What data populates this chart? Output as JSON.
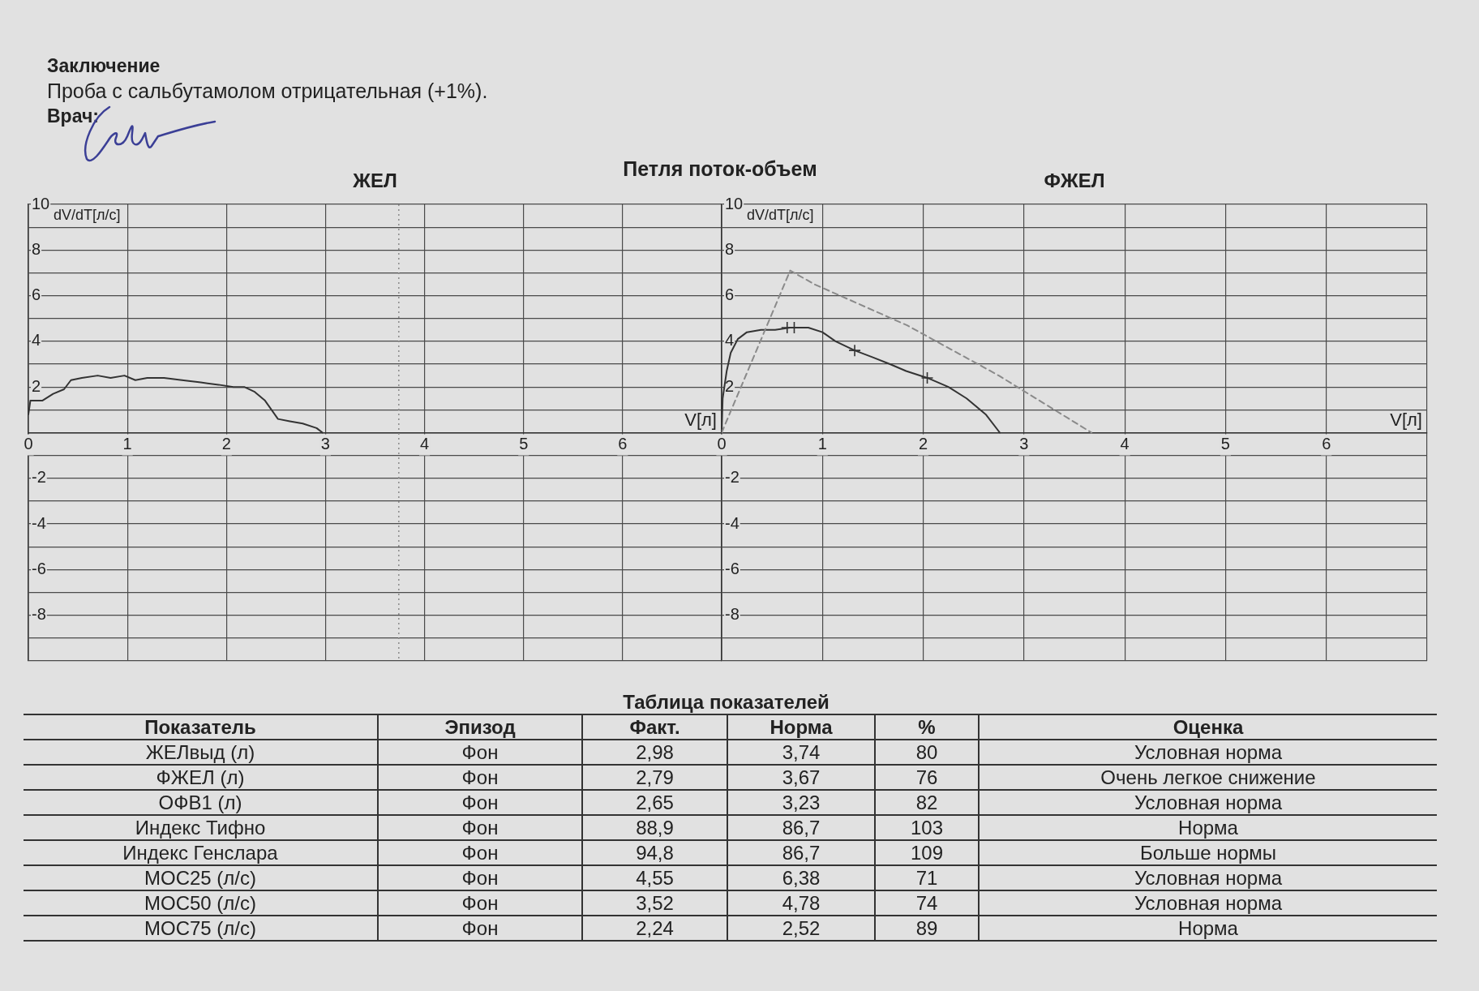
{
  "chart_data": [
    {
      "type": "other",
      "title": "Петля поток-объем",
      "annotations": [
        "Заключение",
        "Проба с сальбутамолом отрицательная (+1%).",
        "Врач:"
      ]
    },
    {
      "type": "line",
      "title": "ЖЕЛ",
      "xlabel": "V[л]",
      "ylabel": "dV/dT[л/с]",
      "xlim": [
        0,
        7
      ],
      "ylim": [
        -10,
        10
      ],
      "xticks": [
        0,
        1,
        2,
        3,
        4,
        5,
        6,
        {
          "value": 7,
          "label": null
        }
      ],
      "yticks": [
        {
          "value": -10,
          "label": null
        },
        {
          "value": -9,
          "label": null
        },
        -8,
        {
          "value": -7,
          "label": null
        },
        -6,
        {
          "value": -5,
          "label": null
        },
        -4,
        {
          "value": -3,
          "label": null
        },
        -2,
        {
          "value": -1,
          "label": null
        },
        {
          "value": 0,
          "label": null
        },
        {
          "value": 1,
          "label": null
        },
        2,
        {
          "value": 3,
          "label": null
        },
        4,
        {
          "value": 5,
          "label": null
        },
        6,
        {
          "value": 7,
          "label": null
        },
        8,
        {
          "value": 9,
          "label": null
        },
        10
      ],
      "grid": true,
      "marker": "none",
      "series": [
        {
          "color": "#333333",
          "line_style": "solid",
          "x": [
            0,
            0.02,
            0.14,
            0.25,
            0.36,
            0.43,
            0.54,
            0.7,
            0.83,
            0.97,
            1.08,
            1.2,
            1.37,
            1.55,
            1.74,
            1.92,
            2.07,
            2.18,
            2.28,
            2.39,
            2.52,
            2.64,
            2.77,
            2.91,
            2.97
          ],
          "values": [
            0.8,
            1.4,
            1.4,
            1.7,
            1.9,
            2.3,
            2.4,
            2.5,
            2.4,
            2.5,
            2.3,
            2.4,
            2.4,
            2.3,
            2.2,
            2.1,
            2.0,
            2.0,
            1.8,
            1.4,
            0.6,
            0.5,
            0.4,
            0.2,
            0
          ]
        }
      ],
      "ref_lines": [
        {
          "axis": "x",
          "value": 3.74,
          "line_style": "dotted",
          "color": "#8a8a8a"
        }
      ]
    },
    {
      "type": "line",
      "title": "ФЖЕЛ",
      "xlabel": "V[л]",
      "ylabel": "dV/dT[л/с]",
      "xlim": [
        0,
        7
      ],
      "ylim": [
        -10,
        10
      ],
      "xticks": [
        0,
        1,
        2,
        3,
        4,
        5,
        6,
        {
          "value": 7,
          "label": null
        }
      ],
      "yticks": [
        {
          "value": -10,
          "label": null
        },
        {
          "value": -9,
          "label": null
        },
        -8,
        {
          "value": -7,
          "label": null
        },
        -6,
        {
          "value": -5,
          "label": null
        },
        -4,
        {
          "value": -3,
          "label": null
        },
        -2,
        {
          "value": -1,
          "label": null
        },
        {
          "value": 0,
          "label": null
        },
        {
          "value": 1,
          "label": null
        },
        2,
        {
          "value": 3,
          "label": null
        },
        4,
        {
          "value": 5,
          "label": null
        },
        6,
        {
          "value": 7,
          "label": null
        },
        8,
        {
          "value": 9,
          "label": null
        },
        10
      ],
      "grid": true,
      "marker": "none",
      "series": [
        {
          "color": "#8a8a8a",
          "line_style": "dashed",
          "x": [
            0,
            0.68,
            0.92,
            1.84,
            2.75,
            3.67
          ],
          "values": [
            0,
            7.1,
            6.5,
            4.7,
            2.5,
            0
          ]
        },
        {
          "color": "#333333",
          "line_style": "solid",
          "x": [
            0,
            0.01,
            0.05,
            0.09,
            0.16,
            0.25,
            0.39,
            0.53,
            0.68,
            0.86,
            1.0,
            1.13,
            1.32,
            1.5,
            1.67,
            1.83,
            2.04,
            2.25,
            2.43,
            2.62,
            2.76
          ],
          "values": [
            0,
            1.5,
            2.7,
            3.5,
            4.1,
            4.4,
            4.5,
            4.5,
            4.6,
            4.6,
            4.4,
            4.0,
            3.6,
            3.3,
            3.0,
            2.7,
            2.4,
            2.0,
            1.5,
            0.8,
            0
          ]
        },
        {
          "type": "scatter",
          "marker": "cross",
          "color": "#333333",
          "x": [
            0.65,
            0.72,
            1.32,
            2.04
          ],
          "values": [
            4.6,
            4.6,
            3.6,
            2.4
          ]
        }
      ]
    },
    {
      "type": "other",
      "title": "Таблица показателей",
      "categories": [
        "Показатель",
        "Эпизод",
        "Факт.",
        "Норма",
        "%",
        "Оценка"
      ],
      "cell_labels": [
        [
          "ЖЕЛвыд (л)",
          "Фон",
          "2,98",
          "3,74",
          "80",
          "Условная норма"
        ],
        [
          "ФЖЕЛ (л)",
          "Фон",
          "2,79",
          "3,67",
          "76",
          "Очень легкое снижение"
        ],
        [
          "ОФВ1 (л)",
          "Фон",
          "2,65",
          "3,23",
          "82",
          "Условная норма"
        ],
        [
          "Индекс Тифно",
          "Фон",
          "88,9",
          "86,7",
          "103",
          "Норма"
        ],
        [
          "Индекс Генслара",
          "Фон",
          "94,8",
          "86,7",
          "109",
          "Больше нормы"
        ],
        [
          "МОС25 (л/с)",
          "Фон",
          "4,55",
          "6,38",
          "71",
          "Условная норма"
        ],
        [
          "МОС50 (л/с)",
          "Фон",
          "3,52",
          "4,78",
          "74",
          "Условная норма"
        ],
        [
          "МОС75 (л/с)",
          "Фон",
          "2,24",
          "2,52",
          "89",
          "Норма"
        ]
      ]
    }
  ]
}
